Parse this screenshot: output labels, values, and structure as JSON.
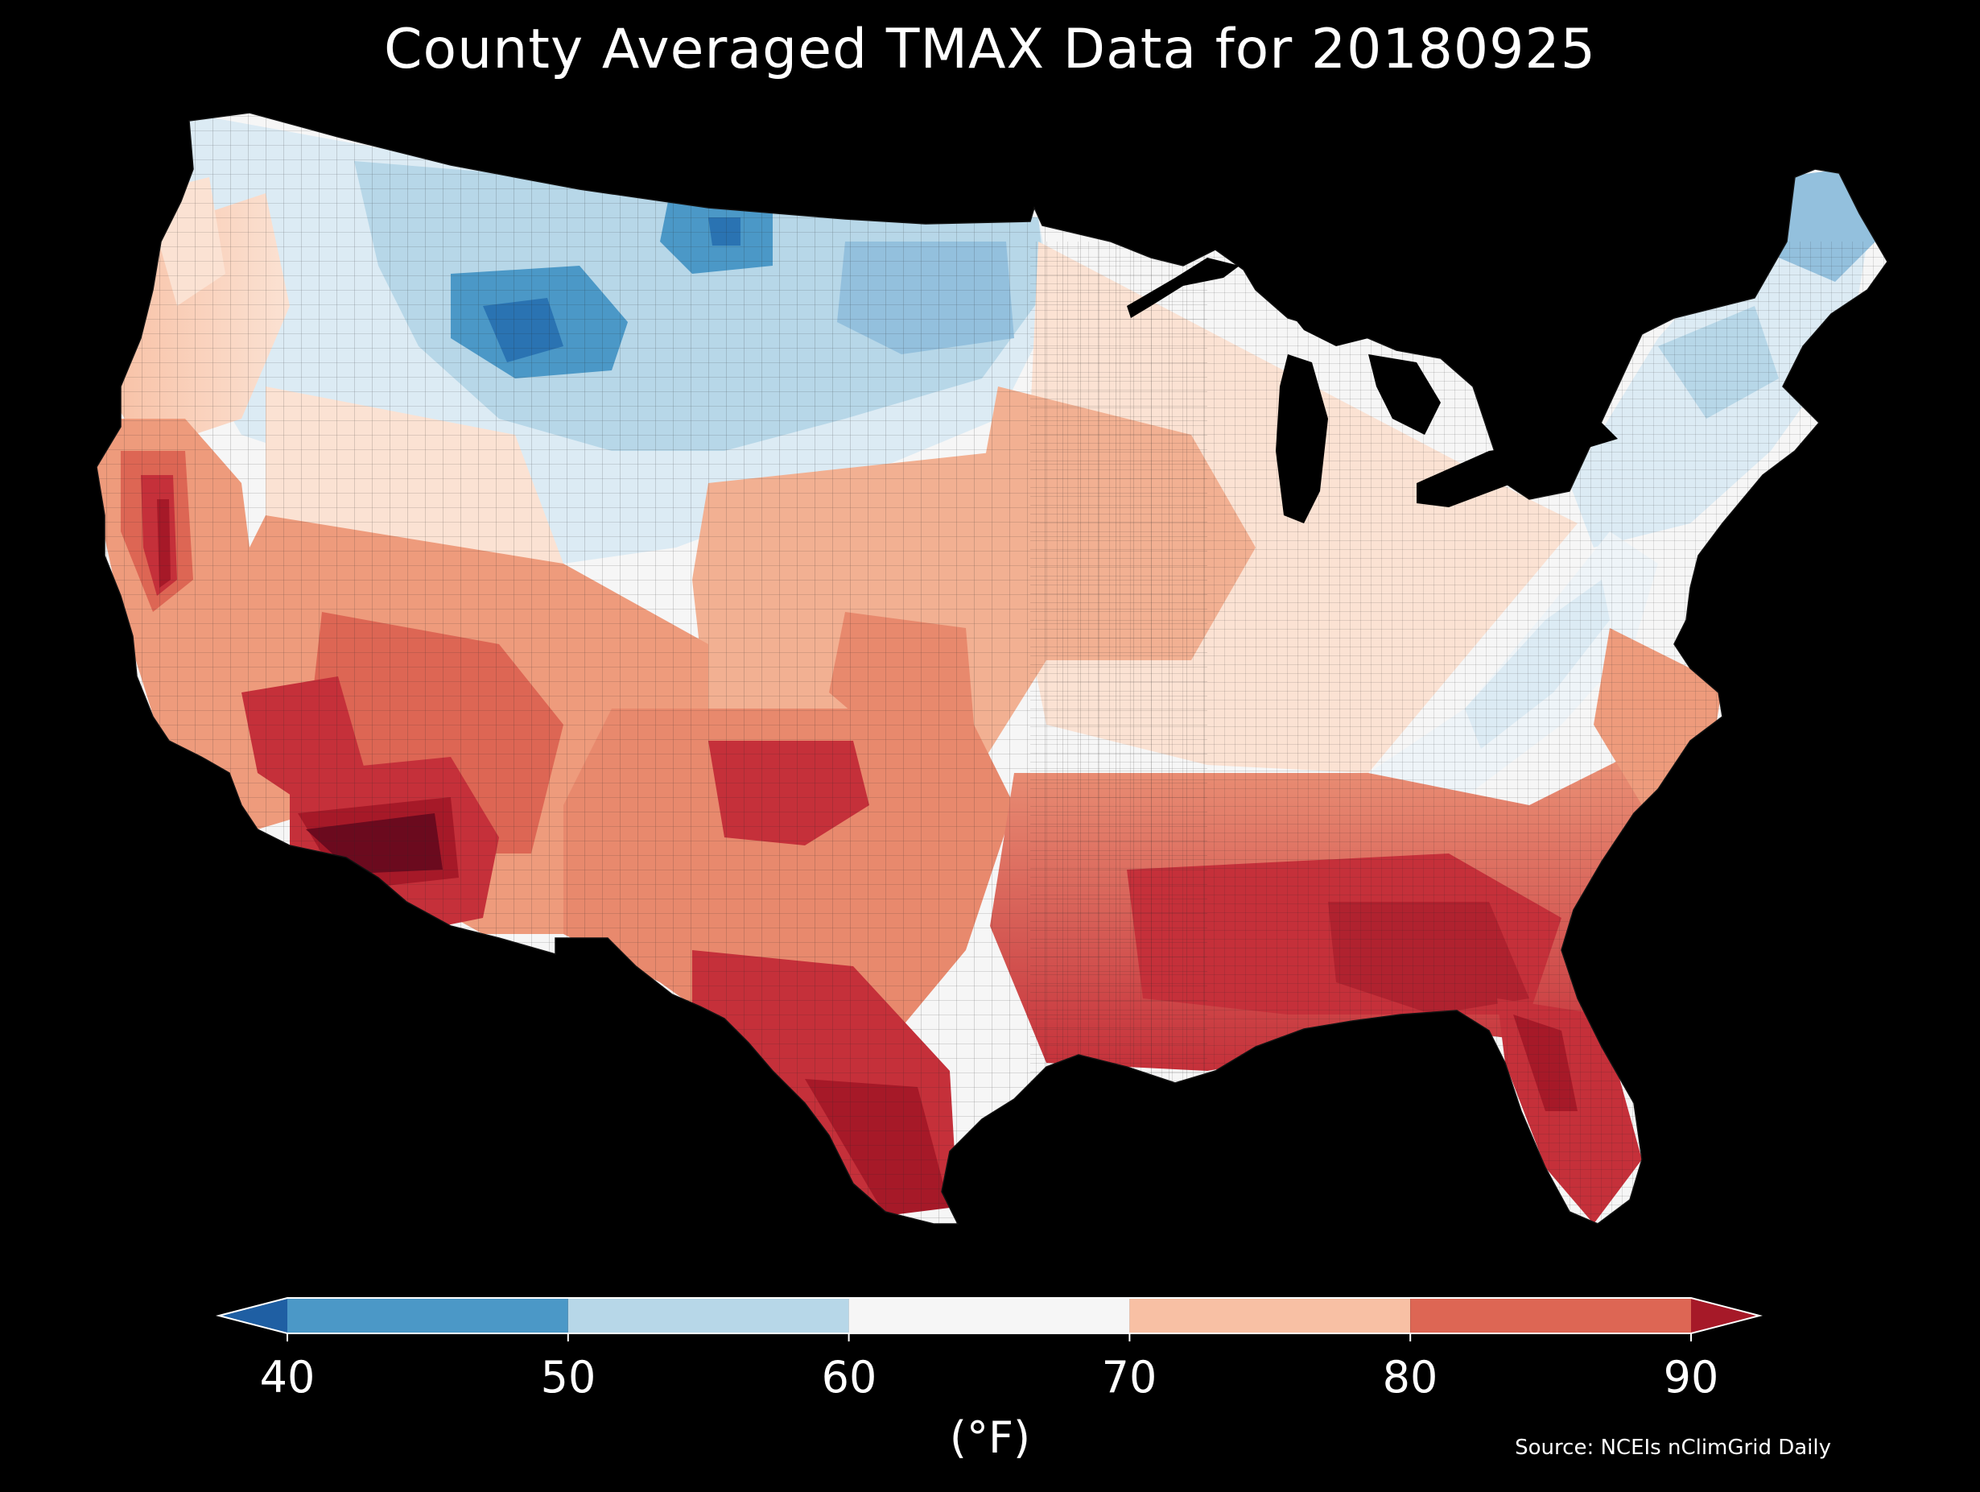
{
  "title": "County Averaged TMAX Data for 20180925",
  "colorbar": {
    "ticks": [
      "40",
      "50",
      "60",
      "70",
      "80",
      "90"
    ],
    "unit": "(°F)",
    "bins": [
      {
        "range": [
          40,
          50
        ],
        "color": "#4b98c7"
      },
      {
        "range": [
          50,
          60
        ],
        "color": "#b7d7e8"
      },
      {
        "range": [
          60,
          70
        ],
        "color": "#f6f6f6"
      },
      {
        "range": [
          70,
          80
        ],
        "color": "#f8c0a4"
      },
      {
        "range": [
          80,
          90
        ],
        "color": "#dd6654"
      }
    ],
    "under_color": "#1f5fa3",
    "over_color": "#a61928"
  },
  "source": "Source: NCEIs nClimGrid Daily",
  "palette": {
    "background": "#000000",
    "lakes": "#000000",
    "county_lines": "#222222",
    "very_cold": "#2a73b2",
    "cold": "#4b98c7",
    "cool": "#b7d7e8",
    "cool_light": "#dcebf4",
    "neutral": "#f6f6f6",
    "warm_light": "#fbe2d3",
    "warm": "#f8c0a4",
    "warm_mid": "#ee9b7c",
    "hot": "#dd6654",
    "very_hot": "#c5303a",
    "hottest": "#a61928",
    "extreme": "#6b0a1e"
  }
}
